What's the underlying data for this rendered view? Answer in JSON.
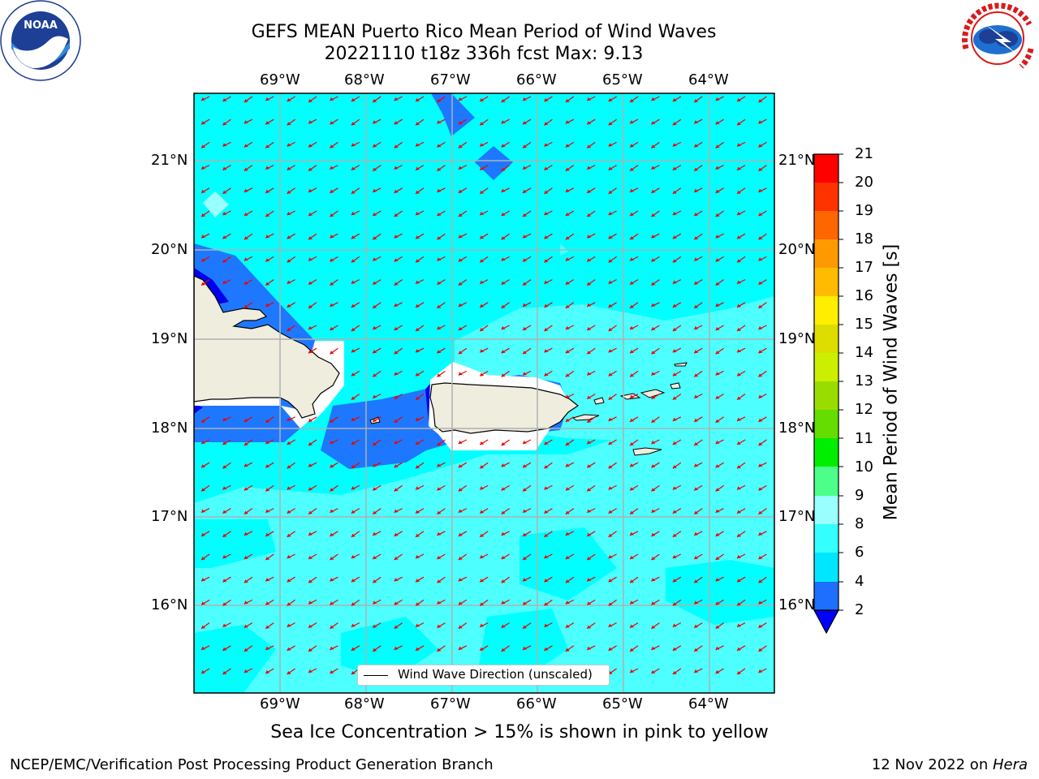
{
  "title_line1": "GEFS MEAN Puerto Rico Mean Period of Wind Waves",
  "title_line2": "20221110 t18z 336h fcst   Max: 9.13",
  "subtitle": "Sea Ice Concentration > 15% is shown in pink to yellow",
  "footer_left": "NCEP/EMC/Verification Post Processing Product Generation Branch",
  "footer_date": "12 Nov 2022 on ",
  "footer_host": "Hera",
  "legend_label": "Wind Wave Direction (unscaled)",
  "logos": {
    "left": "NOAA",
    "right": "NATIONAL WEATHER SERVICE"
  },
  "chart_data": {
    "type": "heatmap",
    "variable": "Mean Period of Wind Waves [s]",
    "lon_ticks": [
      "69°W",
      "68°W",
      "67°W",
      "66°W",
      "65°W",
      "64°W"
    ],
    "lat_ticks": [
      "21°N",
      "20°N",
      "19°N",
      "18°N",
      "17°N",
      "16°N"
    ],
    "lon_range": [
      -70.0,
      -63.25
    ],
    "lat_range": [
      15.0,
      21.75
    ],
    "max_value": 9.13,
    "arrow_direction": "toward south-west (trade-wind waves from the north-east)",
    "colorbar": {
      "label": "Mean Period of Wind Waves [s]",
      "ticks": [
        "2",
        "4",
        "6",
        "8",
        "9",
        "10",
        "11",
        "12",
        "13",
        "14",
        "15",
        "16",
        "17",
        "18",
        "19",
        "20",
        "21"
      ],
      "levels": [
        2,
        4,
        6,
        8,
        9,
        10,
        11,
        12,
        13,
        14,
        15,
        16,
        17,
        18,
        19,
        20,
        21
      ],
      "colors": [
        "#1f6fff",
        "#00e6ff",
        "#33ffff",
        "#99ffff",
        "#4dff88",
        "#00ee00",
        "#22dd22",
        "#66dd00",
        "#99dd00",
        "#ccee00",
        "#dddd00",
        "#ffee00",
        "#ffbb00",
        "#ff9900",
        "#ff6600",
        "#ff3300",
        "#ff0000"
      ],
      "under_color": "#0000ff"
    },
    "field_colors": {
      "lt4": "#1e78ff",
      "4to6": "#00ffff",
      "6to8": "#4dffff",
      "lt2": "#0000ee",
      "land": "#eeedde"
    }
  }
}
